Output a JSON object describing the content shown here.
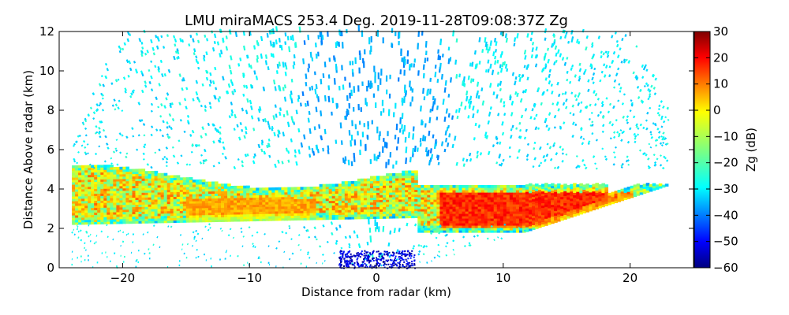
{
  "chart_data": {
    "type": "heatmap",
    "title": "LMU miraMACS 253.4 Deg. 2019-11-28T09:08:37Z  Zg",
    "xlabel": "Distance from radar (km)",
    "ylabel": "Distance Above radar  (km)",
    "xlim": [
      -25,
      25
    ],
    "ylim": [
      0,
      12
    ],
    "xticks": [
      -20,
      -10,
      0,
      10,
      20
    ],
    "yticks": [
      0,
      2,
      4,
      6,
      8,
      10,
      12
    ],
    "grid": false,
    "colorbar": {
      "label": "Zg (dB)",
      "range": [
        -60,
        30
      ],
      "ticks": [
        30,
        20,
        10,
        0,
        -10,
        -20,
        -30,
        -40,
        -50,
        -60
      ],
      "colormap": "jet"
    },
    "regions": [
      {
        "x": [
          -24,
          23
        ],
        "y_base_at_left": 2.6,
        "y_base_at_right": 4.2,
        "y_top": 12,
        "value_range": [
          -32,
          -22
        ]
      },
      {
        "x": [
          -24,
          23
        ],
        "y": [
          2.5,
          5.5
        ],
        "value_range": [
          -20,
          10
        ]
      },
      {
        "x": [
          -15,
          -5
        ],
        "y": [
          1.8,
          3.5
        ],
        "value_range": [
          0,
          8
        ]
      },
      {
        "x": [
          5,
          20
        ],
        "y": [
          2.0,
          3.8
        ],
        "value_range": [
          10,
          20
        ]
      },
      {
        "x": [
          -3,
          3
        ],
        "y": [
          0,
          0.9
        ],
        "value_range": [
          -60,
          -45
        ]
      }
    ]
  }
}
